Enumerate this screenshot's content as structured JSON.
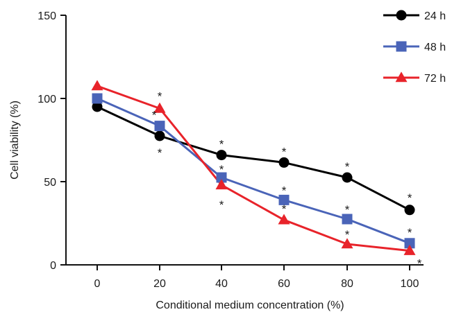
{
  "chart_data": {
    "type": "line",
    "xlabel": "Conditional medium concentration (%)",
    "ylabel": "Cell viability (%)",
    "x": [
      0,
      20,
      40,
      60,
      80,
      100
    ],
    "xticks": [
      "0",
      "20",
      "40",
      "60",
      "80",
      "100"
    ],
    "ylim": [
      0,
      150
    ],
    "yticks": [
      "0",
      "50",
      "100",
      "150"
    ],
    "grid": false,
    "legend_position": "top-right",
    "significance_symbol": "*",
    "series": [
      {
        "name": "24 h",
        "color": "#000000",
        "marker": "circle",
        "values": [
          95,
          77.5,
          66,
          61.5,
          52.5,
          33
        ],
        "significant": [
          false,
          true,
          true,
          true,
          true,
          true
        ]
      },
      {
        "name": "48 h",
        "color": "#4a64b8",
        "marker": "square",
        "values": [
          100,
          83.5,
          52.5,
          39,
          27.5,
          13
        ],
        "significant": [
          false,
          true,
          true,
          true,
          true,
          true
        ]
      },
      {
        "name": "72 h",
        "color": "#e8232a",
        "marker": "triangle",
        "values": [
          107.5,
          94,
          48,
          27,
          12.5,
          8.5
        ],
        "significant": [
          false,
          true,
          true,
          true,
          true,
          true
        ]
      }
    ]
  }
}
